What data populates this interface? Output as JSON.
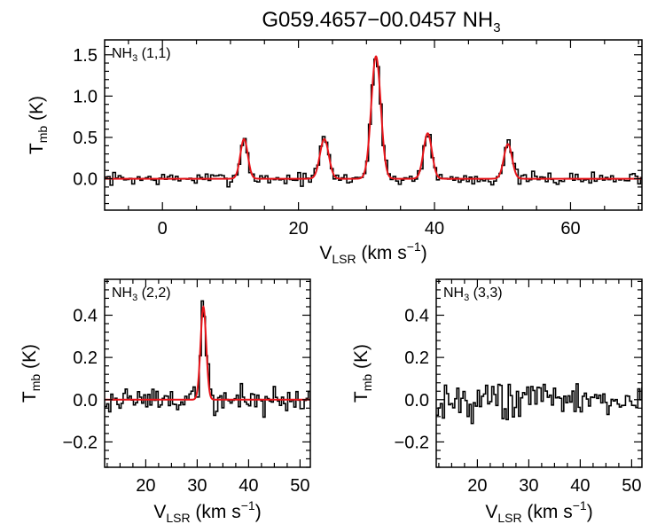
{
  "chart_data": {
    "title": {
      "main": "G059.4657−00.0457 NH",
      "sub": "3"
    },
    "colors": {
      "data": "#000000",
      "fit": "#e8141a"
    },
    "panels": [
      {
        "id": "nh3-11",
        "type": "line",
        "label": {
          "main": "NH",
          "sub": "3",
          "tail": " (1,1)"
        },
        "xlabel": {
          "main": "V",
          "sub": "LSR",
          "tail": " (km s",
          "sup": "−1",
          "close": ")"
        },
        "ylabel": {
          "main": "T",
          "sub": "mb",
          "tail": " (K)"
        },
        "xlim": [
          -8.5,
          70.5
        ],
        "ylim": [
          -0.38,
          1.68
        ],
        "xticks": [
          0,
          20,
          40,
          60
        ],
        "xtick_labels": [
          "0",
          "20",
          "40",
          "60"
        ],
        "yticks": [
          0.0,
          0.5,
          1.0,
          1.5
        ],
        "ytick_labels": [
          "0.0",
          "0.5",
          "1.0",
          "1.5"
        ],
        "show_xtick_labels": true,
        "step": 0.4,
        "noise_amp": 0.055,
        "seed": 7,
        "peaks": [
          {
            "v": 12.0,
            "amp": 0.48,
            "sigma": 0.55
          },
          {
            "v": 23.8,
            "amp": 0.48,
            "sigma": 0.65
          },
          {
            "v": 31.4,
            "amp": 1.48,
            "sigma": 0.7
          },
          {
            "v": 39.0,
            "amp": 0.55,
            "sigma": 0.62
          },
          {
            "v": 50.8,
            "amp": 0.42,
            "sigma": 0.6
          }
        ],
        "fit": true
      },
      {
        "id": "nh3-22",
        "type": "line",
        "label": {
          "main": "NH",
          "sub": "3",
          "tail": " (2,2)"
        },
        "xlabel": {
          "main": "V",
          "sub": "LSR",
          "tail": " (km s",
          "sup": "−1",
          "close": ")"
        },
        "ylabel": {
          "main": "T",
          "sub": "mb",
          "tail": " (K)"
        },
        "xlim": [
          12,
          52
        ],
        "ylim": [
          -0.32,
          0.57
        ],
        "xticks": [
          20,
          30,
          40,
          50
        ],
        "xtick_labels": [
          "20",
          "30",
          "40",
          "50"
        ],
        "yticks": [
          -0.2,
          0.0,
          0.2,
          0.4
        ],
        "ytick_labels": [
          "−0.2",
          "0.0",
          "0.2",
          "0.4"
        ],
        "show_xtick_labels": true,
        "step": 0.4,
        "noise_amp": 0.055,
        "seed": 19,
        "peaks": [
          {
            "v": 31.2,
            "amp": 0.44,
            "sigma": 0.55
          }
        ],
        "fit": true
      },
      {
        "id": "nh3-33",
        "type": "line",
        "label": {
          "main": "NH",
          "sub": "3",
          "tail": " (3,3)"
        },
        "xlabel": {
          "main": "V",
          "sub": "LSR",
          "tail": " (km s",
          "sup": "−1",
          "close": ")"
        },
        "ylabel": {
          "main": "T",
          "sub": "mb",
          "tail": " (K)"
        },
        "xlim": [
          12,
          52
        ],
        "ylim": [
          -0.32,
          0.57
        ],
        "xticks": [
          20,
          30,
          40,
          50
        ],
        "xtick_labels": [
          "20",
          "30",
          "40",
          "50"
        ],
        "yticks": [
          -0.2,
          0.0,
          0.2,
          0.4
        ],
        "ytick_labels": [
          "−0.2",
          "0.0",
          "0.2",
          "0.4"
        ],
        "show_xtick_labels": true,
        "step": 0.4,
        "noise_amp": 0.065,
        "seed": 43,
        "peaks": [],
        "fit": false
      }
    ]
  }
}
